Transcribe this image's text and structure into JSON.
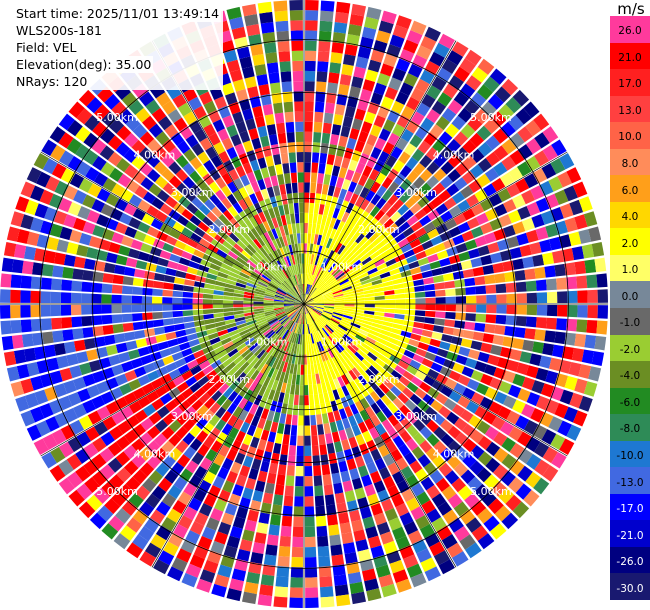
{
  "info": {
    "start_time": "Start time: 2025/11/01 13:49:14",
    "instrument": "WLS200s-181",
    "field": "Field: VEL",
    "elevation": "Elevation(deg): 35.00",
    "nrays": "NRays: 120"
  },
  "colorbar": {
    "unit": "m/s",
    "levels": [
      {
        "label": "26.0",
        "color": "#ff3a9c"
      },
      {
        "label": "21.0",
        "color": "#ff0000"
      },
      {
        "label": "17.0",
        "color": "#ff2020"
      },
      {
        "label": "13.0",
        "color": "#ff4040"
      },
      {
        "label": "10.0",
        "color": "#ff6347"
      },
      {
        "label": "8.0",
        "color": "#ff8c5a"
      },
      {
        "label": "6.0",
        "color": "#ff9f1a"
      },
      {
        "label": "4.0",
        "color": "#ffd700"
      },
      {
        "label": "2.0",
        "color": "#ffff00"
      },
      {
        "label": "1.0",
        "color": "#ffff66"
      },
      {
        "label": "0.0",
        "color": "#778899"
      },
      {
        "label": "-1.0",
        "color": "#696969"
      },
      {
        "label": "-2.0",
        "color": "#9acd32"
      },
      {
        "label": "-4.0",
        "color": "#6b8e23"
      },
      {
        "label": "-6.0",
        "color": "#228b22"
      },
      {
        "label": "-8.0",
        "color": "#2e8b57"
      },
      {
        "label": "-10.0",
        "color": "#1e78d2"
      },
      {
        "label": "-13.0",
        "color": "#4169e1"
      },
      {
        "label": "-17.0",
        "color": "#0000ff"
      },
      {
        "label": "-21.0",
        "color": "#0000cd"
      },
      {
        "label": "-26.0",
        "color": "#000080"
      },
      {
        "label": "-30.0",
        "color": "#191970"
      }
    ]
  },
  "chart_data": {
    "type": "heatmap",
    "projection": "polar (PPI)",
    "rings": [
      "1.00km",
      "2.00km",
      "3.00km",
      "4.00km",
      "5.00km"
    ],
    "ring_km": [
      1,
      2,
      3,
      4,
      5
    ],
    "value_range": [
      -30,
      30
    ],
    "nrays": 120,
    "grid": true
  }
}
